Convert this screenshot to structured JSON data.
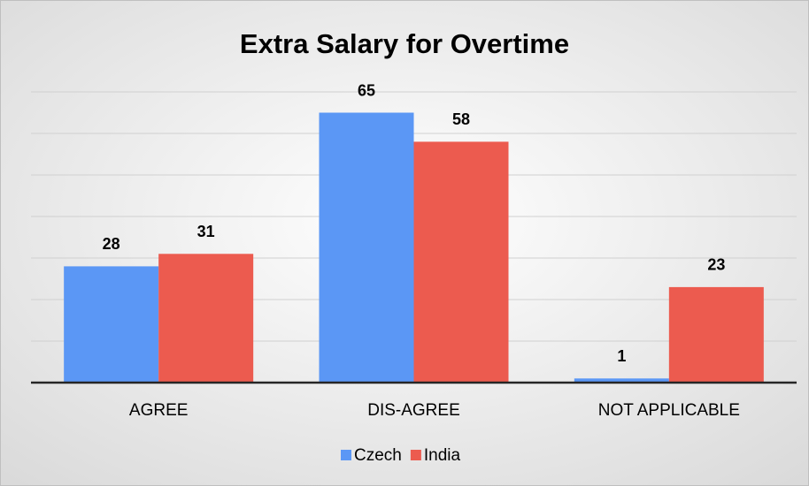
{
  "chart_data": {
    "type": "bar",
    "title": "Extra Salary for Overtime",
    "categories": [
      "AGREE",
      "DIS-AGREE",
      "NOT APPLICABLE"
    ],
    "series": [
      {
        "name": "Czech",
        "color": "#5b97f5",
        "values": [
          28,
          65,
          1
        ]
      },
      {
        "name": "India",
        "color": "#ec5b4f",
        "values": [
          31,
          58,
          23
        ]
      }
    ],
    "ylim": [
      0,
      70
    ],
    "yticks": [
      0,
      10,
      20,
      30,
      40,
      50,
      60,
      70
    ],
    "grid": true,
    "legend": "bottom"
  }
}
